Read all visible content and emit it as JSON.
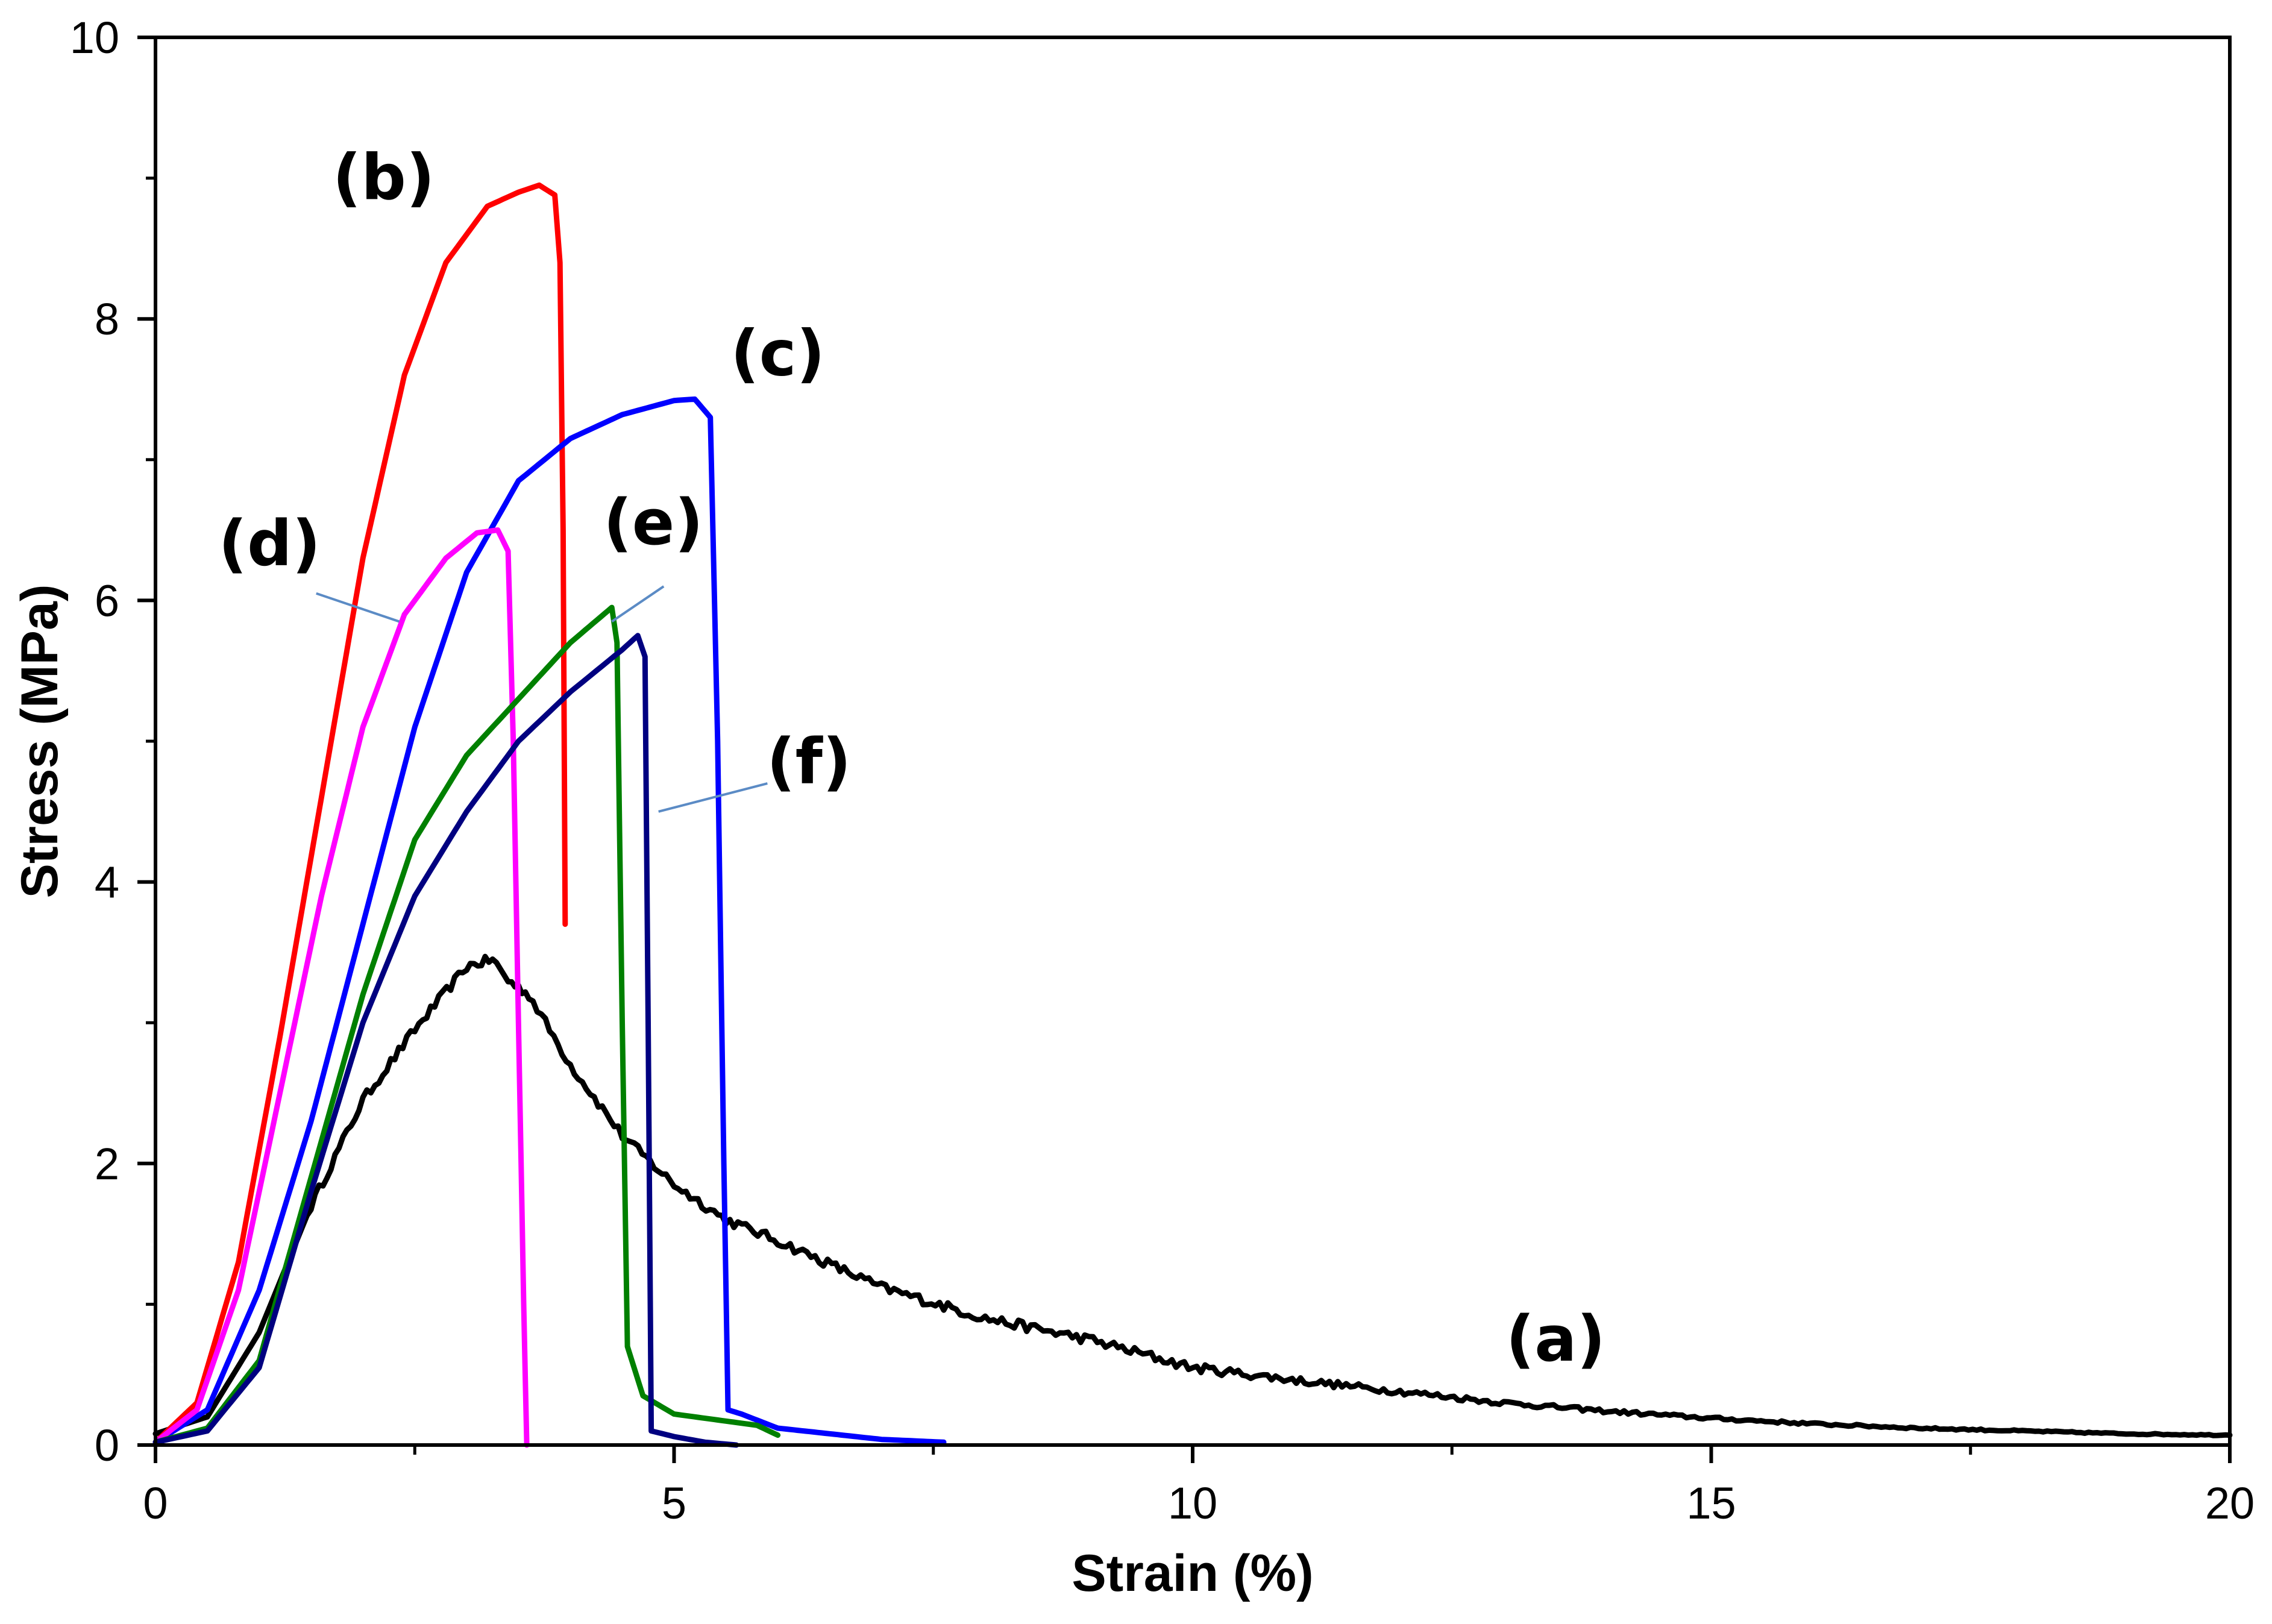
{
  "chart_data": {
    "type": "line",
    "xlabel": "Strain (%)",
    "ylabel": "Stress (MPa)",
    "xlim": [
      0,
      20
    ],
    "ylim": [
      0,
      10
    ],
    "x_ticks": [
      0,
      5,
      10,
      15,
      20
    ],
    "y_ticks": [
      0,
      2,
      4,
      6,
      8,
      10
    ],
    "x_minor_step": 2.5,
    "y_minor_step": 1,
    "grid": false,
    "series": [
      {
        "name": "(a)",
        "color": "#000000",
        "noise": 0.035,
        "points": [
          [
            0,
            0.08
          ],
          [
            0.5,
            0.2
          ],
          [
            1,
            0.8
          ],
          [
            1.5,
            1.7
          ],
          [
            2,
            2.45
          ],
          [
            2.5,
            2.95
          ],
          [
            3,
            3.4
          ],
          [
            3.25,
            3.45
          ],
          [
            3.4,
            3.3
          ],
          [
            3.6,
            3.2
          ],
          [
            4,
            2.7
          ],
          [
            4.5,
            2.2
          ],
          [
            5,
            1.85
          ],
          [
            5.5,
            1.6
          ],
          [
            6,
            1.45
          ],
          [
            7,
            1.12
          ],
          [
            8,
            0.9
          ],
          [
            9,
            0.75
          ],
          [
            10,
            0.55
          ],
          [
            11,
            0.46
          ],
          [
            12,
            0.38
          ],
          [
            13,
            0.3
          ],
          [
            14,
            0.24
          ],
          [
            15,
            0.19
          ],
          [
            16,
            0.15
          ],
          [
            17,
            0.12
          ],
          [
            18,
            0.1
          ],
          [
            19,
            0.08
          ],
          [
            20,
            0.07
          ]
        ]
      },
      {
        "name": "(b)",
        "color": "#ff0000",
        "noise": 0,
        "points": [
          [
            0,
            0.02
          ],
          [
            0.4,
            0.3
          ],
          [
            0.8,
            1.3
          ],
          [
            1.2,
            2.9
          ],
          [
            1.6,
            4.6
          ],
          [
            2,
            6.3
          ],
          [
            2.4,
            7.6
          ],
          [
            2.8,
            8.4
          ],
          [
            3.2,
            8.8
          ],
          [
            3.5,
            8.9
          ],
          [
            3.7,
            8.95
          ],
          [
            3.85,
            8.88
          ],
          [
            3.9,
            8.4
          ],
          [
            3.93,
            6.5
          ],
          [
            3.95,
            3.7
          ]
        ]
      },
      {
        "name": "(c)",
        "color": "#0000ff",
        "noise": 0,
        "points": [
          [
            0,
            0.02
          ],
          [
            0.5,
            0.25
          ],
          [
            1,
            1.1
          ],
          [
            1.5,
            2.3
          ],
          [
            2,
            3.7
          ],
          [
            2.5,
            5.1
          ],
          [
            3,
            6.2
          ],
          [
            3.5,
            6.85
          ],
          [
            4,
            7.15
          ],
          [
            4.5,
            7.32
          ],
          [
            5,
            7.42
          ],
          [
            5.2,
            7.43
          ],
          [
            5.35,
            7.3
          ],
          [
            5.42,
            5
          ],
          [
            5.48,
            2
          ],
          [
            5.52,
            0.25
          ],
          [
            5.65,
            0.22
          ],
          [
            6,
            0.12
          ],
          [
            6.5,
            0.08
          ],
          [
            7,
            0.04
          ],
          [
            7.6,
            0.02
          ]
        ]
      },
      {
        "name": "(d)",
        "color": "#ff00ff",
        "noise": 0,
        "points": [
          [
            0,
            0.02
          ],
          [
            0.4,
            0.25
          ],
          [
            0.8,
            1.1
          ],
          [
            1.2,
            2.5
          ],
          [
            1.6,
            3.9
          ],
          [
            2,
            5.1
          ],
          [
            2.4,
            5.9
          ],
          [
            2.8,
            6.3
          ],
          [
            3.1,
            6.48
          ],
          [
            3.3,
            6.5
          ],
          [
            3.4,
            6.35
          ],
          [
            3.45,
            5
          ],
          [
            3.5,
            3
          ],
          [
            3.55,
            1
          ],
          [
            3.58,
            0
          ]
        ]
      },
      {
        "name": "(e)",
        "color": "#008000",
        "noise": 0,
        "points": [
          [
            0,
            0.02
          ],
          [
            0.5,
            0.12
          ],
          [
            1,
            0.6
          ],
          [
            1.5,
            1.9
          ],
          [
            2,
            3.2
          ],
          [
            2.5,
            4.3
          ],
          [
            3,
            4.9
          ],
          [
            3.5,
            5.3
          ],
          [
            4,
            5.7
          ],
          [
            4.4,
            5.95
          ],
          [
            4.45,
            5.7
          ],
          [
            4.5,
            3
          ],
          [
            4.55,
            0.7
          ],
          [
            4.7,
            0.35
          ],
          [
            5,
            0.22
          ],
          [
            5.5,
            0.17
          ],
          [
            5.8,
            0.14
          ],
          [
            6,
            0.07
          ]
        ]
      },
      {
        "name": "(f)",
        "color": "#000080",
        "noise": 0,
        "points": [
          [
            0,
            0.02
          ],
          [
            0.5,
            0.1
          ],
          [
            1,
            0.55
          ],
          [
            1.5,
            1.8
          ],
          [
            2,
            3
          ],
          [
            2.5,
            3.9
          ],
          [
            3,
            4.5
          ],
          [
            3.5,
            5
          ],
          [
            4,
            5.35
          ],
          [
            4.5,
            5.65
          ],
          [
            4.65,
            5.75
          ],
          [
            4.72,
            5.6
          ],
          [
            4.75,
            3
          ],
          [
            4.78,
            0.1
          ],
          [
            5,
            0.06
          ],
          [
            5.3,
            0.02
          ],
          [
            5.6,
            0
          ]
        ]
      }
    ],
    "annotations": [
      {
        "text": "(a)",
        "x": 13.5,
        "y": 0.6,
        "leader": false
      },
      {
        "text": "(b)",
        "x": 2.2,
        "y": 8.85,
        "leader": false
      },
      {
        "text": "(c)",
        "x": 6.0,
        "y": 7.6,
        "leader": false
      },
      {
        "text": "(d)",
        "x": 1.1,
        "y": 6.25,
        "leader": true,
        "leader_from": [
          1.55,
          6.05
        ],
        "leader_to": [
          2.35,
          5.85
        ]
      },
      {
        "text": "(e)",
        "x": 4.8,
        "y": 6.4,
        "leader": true,
        "leader_from": [
          4.9,
          6.1
        ],
        "leader_to": [
          4.4,
          5.85
        ]
      },
      {
        "text": "(f)",
        "x": 6.3,
        "y": 4.7,
        "leader": true,
        "leader_from": [
          5.9,
          4.7
        ],
        "leader_to": [
          4.85,
          4.5
        ]
      }
    ]
  }
}
